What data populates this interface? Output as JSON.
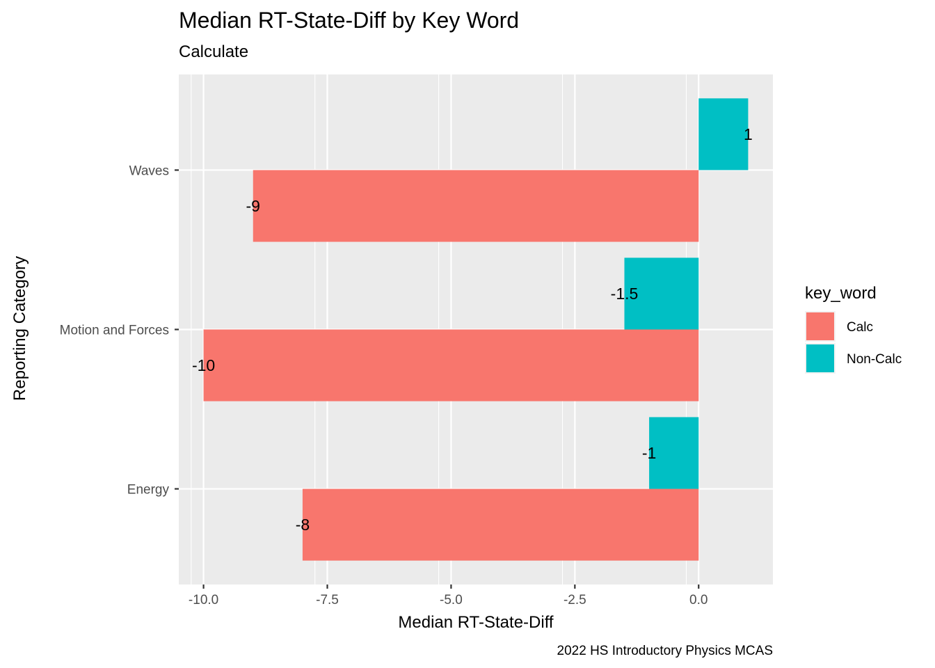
{
  "chart_data": {
    "type": "bar",
    "orientation": "horizontal",
    "title": "Median RT-State-Diff by Key Word",
    "subtitle": "Calculate",
    "xlabel": "Median RT-State-Diff",
    "ylabel": "Reporting Category",
    "caption": "2022 HS Introductory Physics MCAS",
    "categories": [
      "Energy",
      "Motion and Forces",
      "Waves"
    ],
    "x_ticks": [
      "-10.0",
      "-7.5",
      "-5.0",
      "-2.5",
      "0.0"
    ],
    "xlim": [
      -10.5,
      1.5
    ],
    "legend": {
      "title": "key_word",
      "position": "right"
    },
    "series": [
      {
        "name": "Calc",
        "color": "#F8766D",
        "values": [
          -8,
          -10,
          -9
        ],
        "labels": [
          "-8",
          "-10",
          "-9"
        ]
      },
      {
        "name": "Non-Calc",
        "color": "#00BFC4",
        "values": [
          -1,
          -1.5,
          1
        ],
        "labels": [
          "-1",
          "-1.5",
          "1"
        ]
      }
    ],
    "panel_background": "#EBEBEB",
    "grid": true
  }
}
